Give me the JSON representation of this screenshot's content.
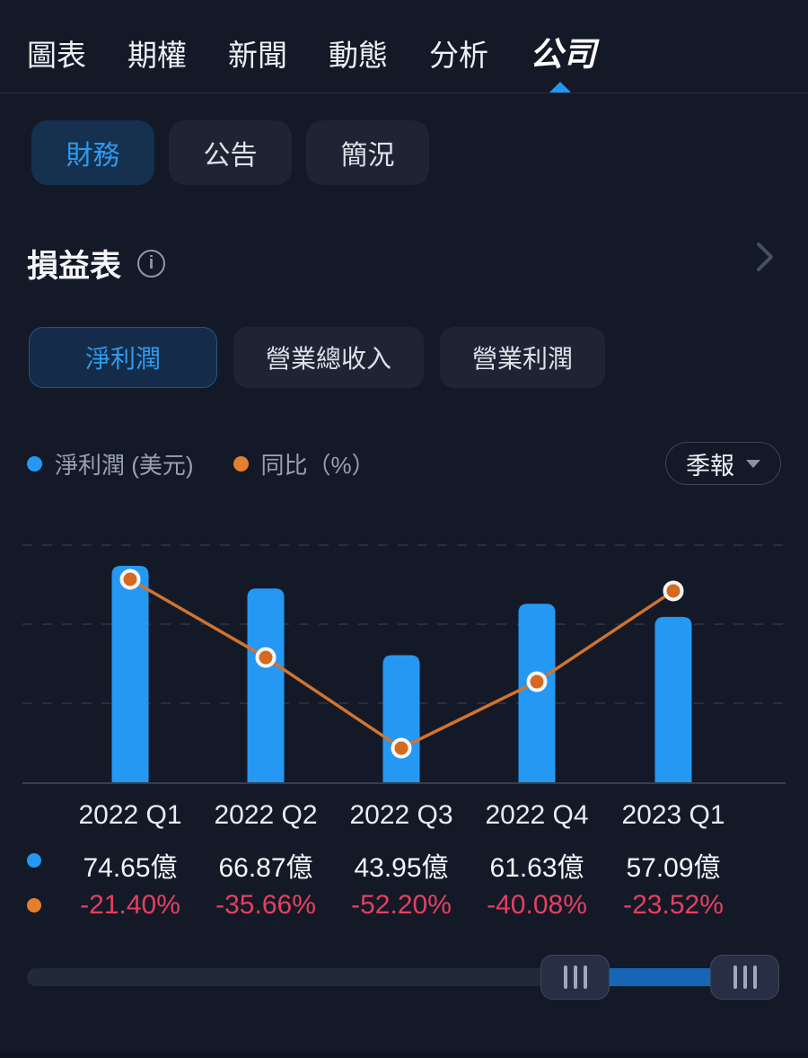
{
  "nav": {
    "items": [
      {
        "label": "圖表",
        "badge": false
      },
      {
        "label": "期權",
        "badge": false
      },
      {
        "label": "新聞",
        "badge": true
      },
      {
        "label": "動態",
        "badge": true
      },
      {
        "label": "分析",
        "badge": false
      },
      {
        "label": "公司",
        "badge": false
      }
    ],
    "active": "公司"
  },
  "tabs": {
    "items": [
      {
        "label": "財務",
        "active": true
      },
      {
        "label": "公告",
        "active": false
      },
      {
        "label": "簡況",
        "active": false
      }
    ]
  },
  "section": {
    "title": "損益表"
  },
  "subtabs": {
    "items": [
      {
        "label": "淨利潤",
        "active": true
      },
      {
        "label": "營業總收入",
        "active": false
      },
      {
        "label": "營業利潤",
        "active": false
      }
    ]
  },
  "legend": {
    "series": [
      {
        "label": "淨利潤 (美元)",
        "color": "#2598f4"
      },
      {
        "label": "同比（%）",
        "color": "#e2802d"
      }
    ],
    "period": {
      "label": "季報"
    }
  },
  "chart_data": {
    "type": "bar",
    "categories": [
      "2022 Q1",
      "2022 Q2",
      "2022 Q3",
      "2022 Q4",
      "2023 Q1"
    ],
    "series": [
      {
        "name": "淨利潤 (美元)",
        "type": "bar",
        "unit": "億",
        "values": [
          74.65,
          66.87,
          43.95,
          61.63,
          57.09
        ],
        "labels": [
          "74.65億",
          "66.87億",
          "43.95億",
          "61.63億",
          "57.09億"
        ],
        "color": "#2598f4"
      },
      {
        "name": "同比（%）",
        "type": "line",
        "unit": "%",
        "values": [
          -21.4,
          -35.66,
          -52.2,
          -40.08,
          -23.52
        ],
        "labels": [
          "-21.40%",
          "-35.66%",
          "-52.20%",
          "-40.08%",
          "-23.52%"
        ],
        "color": "#d0742f"
      }
    ],
    "grid": true,
    "legend_position": "top"
  },
  "colors": {
    "background": "#141927",
    "accent_blue": "#2196f3",
    "bar_blue": "#2598f4",
    "line_orange": "#d0742f",
    "dot_orange_fill": "#d4691f",
    "dot_ring": "#f5f6f8",
    "negative_pink": "#e5405f",
    "badge_red": "#f23a5c",
    "active_tab_bg": "#16304f",
    "active_tab_text": "#2e9af0"
  }
}
